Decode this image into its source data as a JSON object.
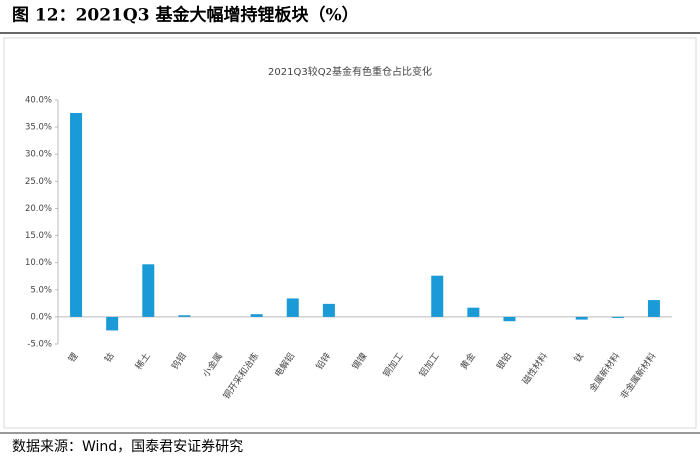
{
  "chart_data": {
    "type": "bar",
    "figure_title": "图 12：2021Q3 基金大幅增持锂板块（%）",
    "title": "2021Q3较Q2基金有色重仓占比变化",
    "source": "数据来源：Wind，国泰君安证券研究",
    "categories": [
      "锂",
      "钴",
      "稀土",
      "钨钼",
      "小金属",
      "铜开采和冶炼",
      "电解铝",
      "铅锌",
      "锡镍",
      "铜加工",
      "铝加工",
      "黄金",
      "银铂",
      "磁性材料",
      "钛",
      "金属新材料",
      "非金属新材料"
    ],
    "values": [
      37.6,
      -2.5,
      9.7,
      0.3,
      0,
      0.5,
      3.4,
      2.4,
      0,
      0,
      7.6,
      1.7,
      -0.8,
      0,
      -0.5,
      -0.2,
      3.1
    ],
    "color": "#1a9bd7",
    "ylim": [
      -5,
      40
    ],
    "yticks": [
      {
        "value": -5,
        "label": "-5.0%"
      },
      {
        "value": 0,
        "label": "0.0%"
      },
      {
        "value": 5,
        "label": "5.0%"
      },
      {
        "value": 10,
        "label": "10.0%"
      },
      {
        "value": 15,
        "label": "15.0%"
      },
      {
        "value": 20,
        "label": "20.0%"
      },
      {
        "value": 25,
        "label": "25.0%"
      },
      {
        "value": 30,
        "label": "30.0%"
      },
      {
        "value": 35,
        "label": "35.0%"
      },
      {
        "value": 40,
        "label": "40.0%"
      }
    ]
  }
}
